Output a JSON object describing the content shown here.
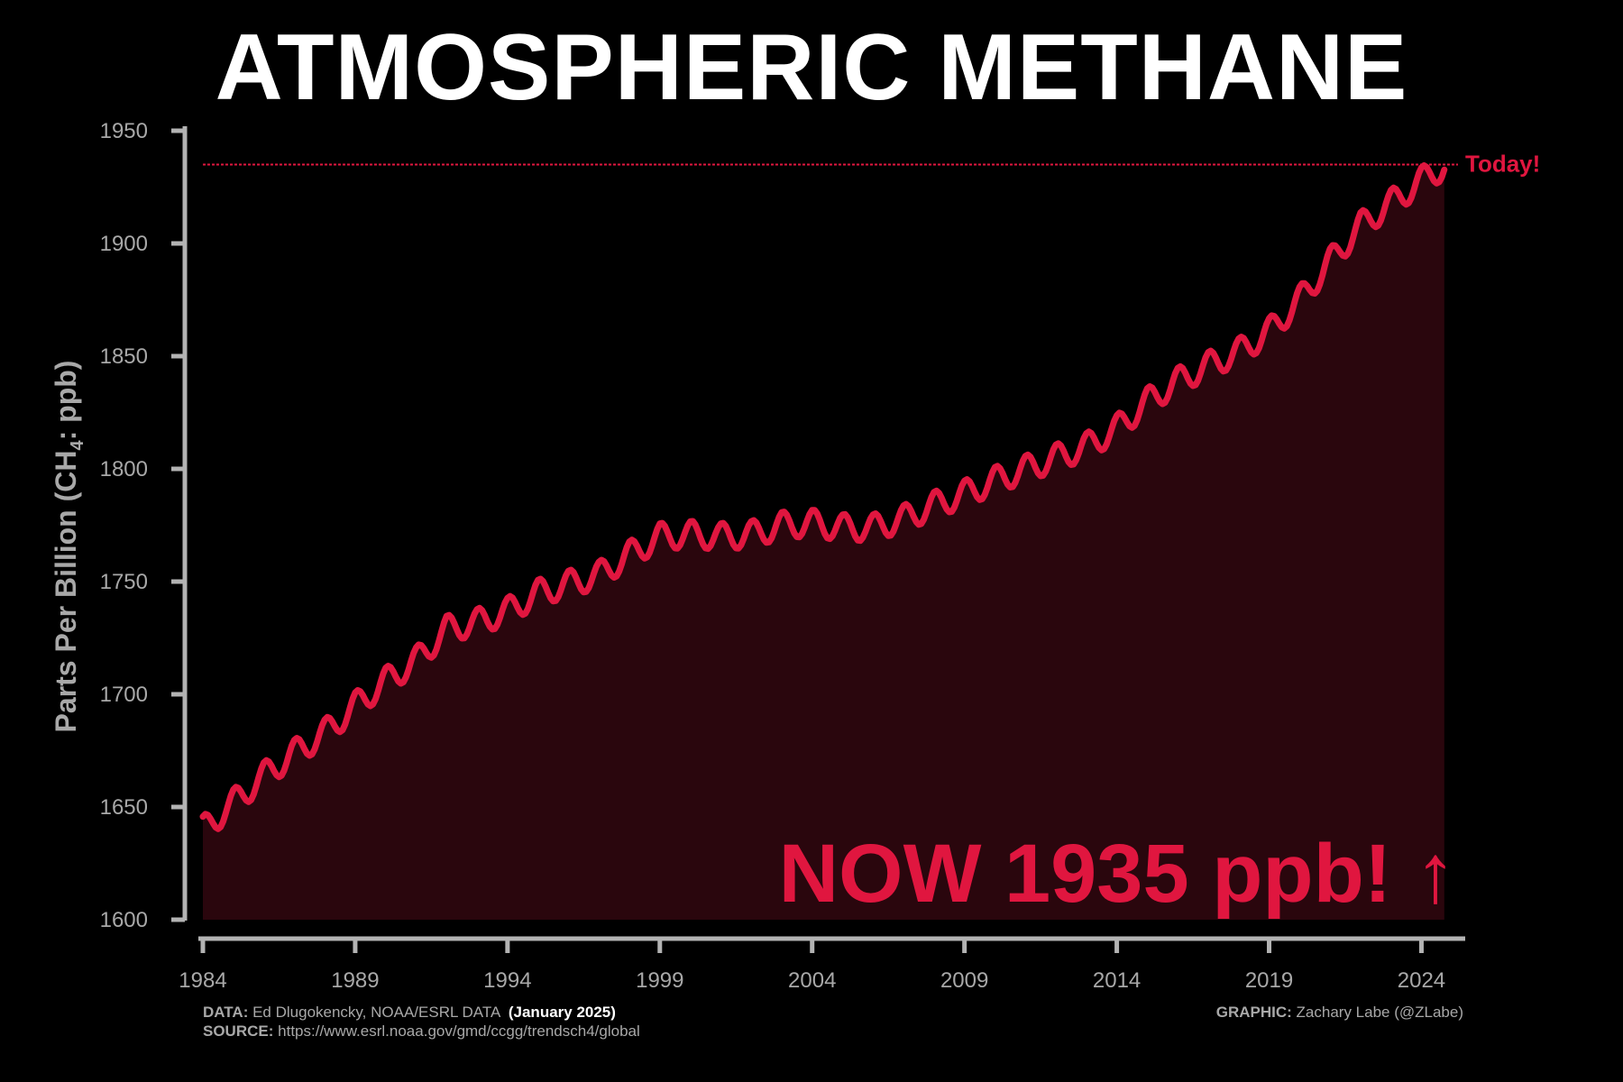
{
  "title": "ATMOSPHERIC METHANE",
  "colors": {
    "background": "#000000",
    "line": "#e0163f",
    "fill": "#2a060d",
    "axis": "#b3b3b3",
    "text_muted": "#a8a8a8",
    "title": "#ffffff"
  },
  "annotations": {
    "now_text": "NOW 1935 ppb! ↑",
    "today_label": "Today!",
    "today_value": 1935
  },
  "footer": {
    "data_label": "DATA:",
    "data_text": "Ed Dlugokencky, NOAA/ESRL DATA",
    "data_date": "(January 2025)",
    "source_label": "SOURCE:",
    "source_text": "https://www.esrl.noaa.gov/gmd/ccgg/trendsch4/global",
    "graphic_label": "GRAPHIC:",
    "graphic_text": "Zachary Labe (@ZLabe)"
  },
  "chart_data": {
    "type": "area",
    "title": "ATMOSPHERIC METHANE",
    "xlabel": "",
    "ylabel": "Parts Per Billion (CH4: ppb)",
    "ylabel_parts": {
      "prefix": "Parts Per Billion (CH",
      "subscript": "4",
      "suffix": ": ppb)"
    },
    "xlim": [
      1984,
      2025.2
    ],
    "ylim": [
      1600,
      1950
    ],
    "x_ticks": [
      1984,
      1989,
      1994,
      1999,
      2004,
      2009,
      2014,
      2019,
      2024
    ],
    "y_ticks": [
      1600,
      1650,
      1700,
      1750,
      1800,
      1850,
      1900,
      1950
    ],
    "grid": false,
    "legend": "none",
    "seasonal_amplitude": 6,
    "series": [
      {
        "x": [
          1984.0,
          1985.0,
          1986.0,
          1987.0,
          1988.0,
          1989.0,
          1990.0,
          1991.0,
          1992.0,
          1993.0,
          1994.0,
          1995.0,
          1996.0,
          1997.0,
          1998.0,
          1999.0,
          2000.0,
          2001.0,
          2002.0,
          2003.0,
          2004.0,
          2005.0,
          2006.0,
          2007.0,
          2008.0,
          2009.0,
          2010.0,
          2011.0,
          2012.0,
          2013.0,
          2014.0,
          2015.0,
          2016.0,
          2017.0,
          2018.0,
          2019.0,
          2020.0,
          2021.0,
          2022.0,
          2023.0,
          2024.0,
          2024.8
        ],
        "y": [
          1640,
          1652,
          1664,
          1674,
          1683,
          1695,
          1706,
          1715,
          1729,
          1732,
          1737,
          1745,
          1749,
          1753,
          1762,
          1770,
          1771,
          1770,
          1771,
          1775,
          1776,
          1774,
          1774,
          1778,
          1784,
          1789,
          1795,
          1800,
          1805,
          1810,
          1818,
          1830,
          1839,
          1846,
          1852,
          1861,
          1875,
          1892,
          1908,
          1918,
          1928,
          1935
        ]
      }
    ]
  }
}
